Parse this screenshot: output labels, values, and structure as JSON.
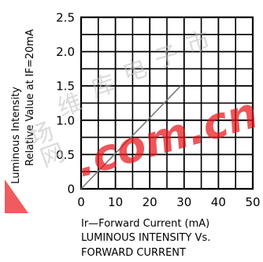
{
  "chart_data": {
    "type": "line",
    "title": "LUMINOUS INTENSITY Vs.",
    "subtitle": "FORWARD CURRENT",
    "xlabel": "Ir—Forward Current (mA)",
    "ylabel": [
      "Luminous Intensity",
      "Relative Value at IF=20mA"
    ],
    "xlim": [
      0,
      50
    ],
    "ylim": [
      0,
      2.5
    ],
    "xticks": [
      0,
      10,
      20,
      30,
      40,
      50
    ],
    "xtick_labels": [
      "0",
      "10",
      "20",
      "30",
      "40",
      "50"
    ],
    "yticks": [
      0,
      0.5,
      1.0,
      1.5,
      2.0,
      2.5
    ],
    "ytick_labels": [
      "0",
      "0.5",
      "1.0",
      "1.5",
      "2.0",
      "2.5"
    ],
    "grid": true,
    "minor_gridlines_per_major": 2,
    "series": [
      {
        "x": [
          0,
          29
        ],
        "y": [
          0,
          1.5
        ]
      }
    ]
  },
  "colors": {
    "grid": "#000000",
    "line": "#7a7a7a",
    "watermark_logo": "#e8161b",
    "watermark_cjk": "#bdbdbd"
  },
  "watermark": {
    "cjk": [
      "维",
      "库",
      "电",
      "子",
      "市",
      "场",
      "网"
    ],
    "latin": ".com.cn"
  }
}
